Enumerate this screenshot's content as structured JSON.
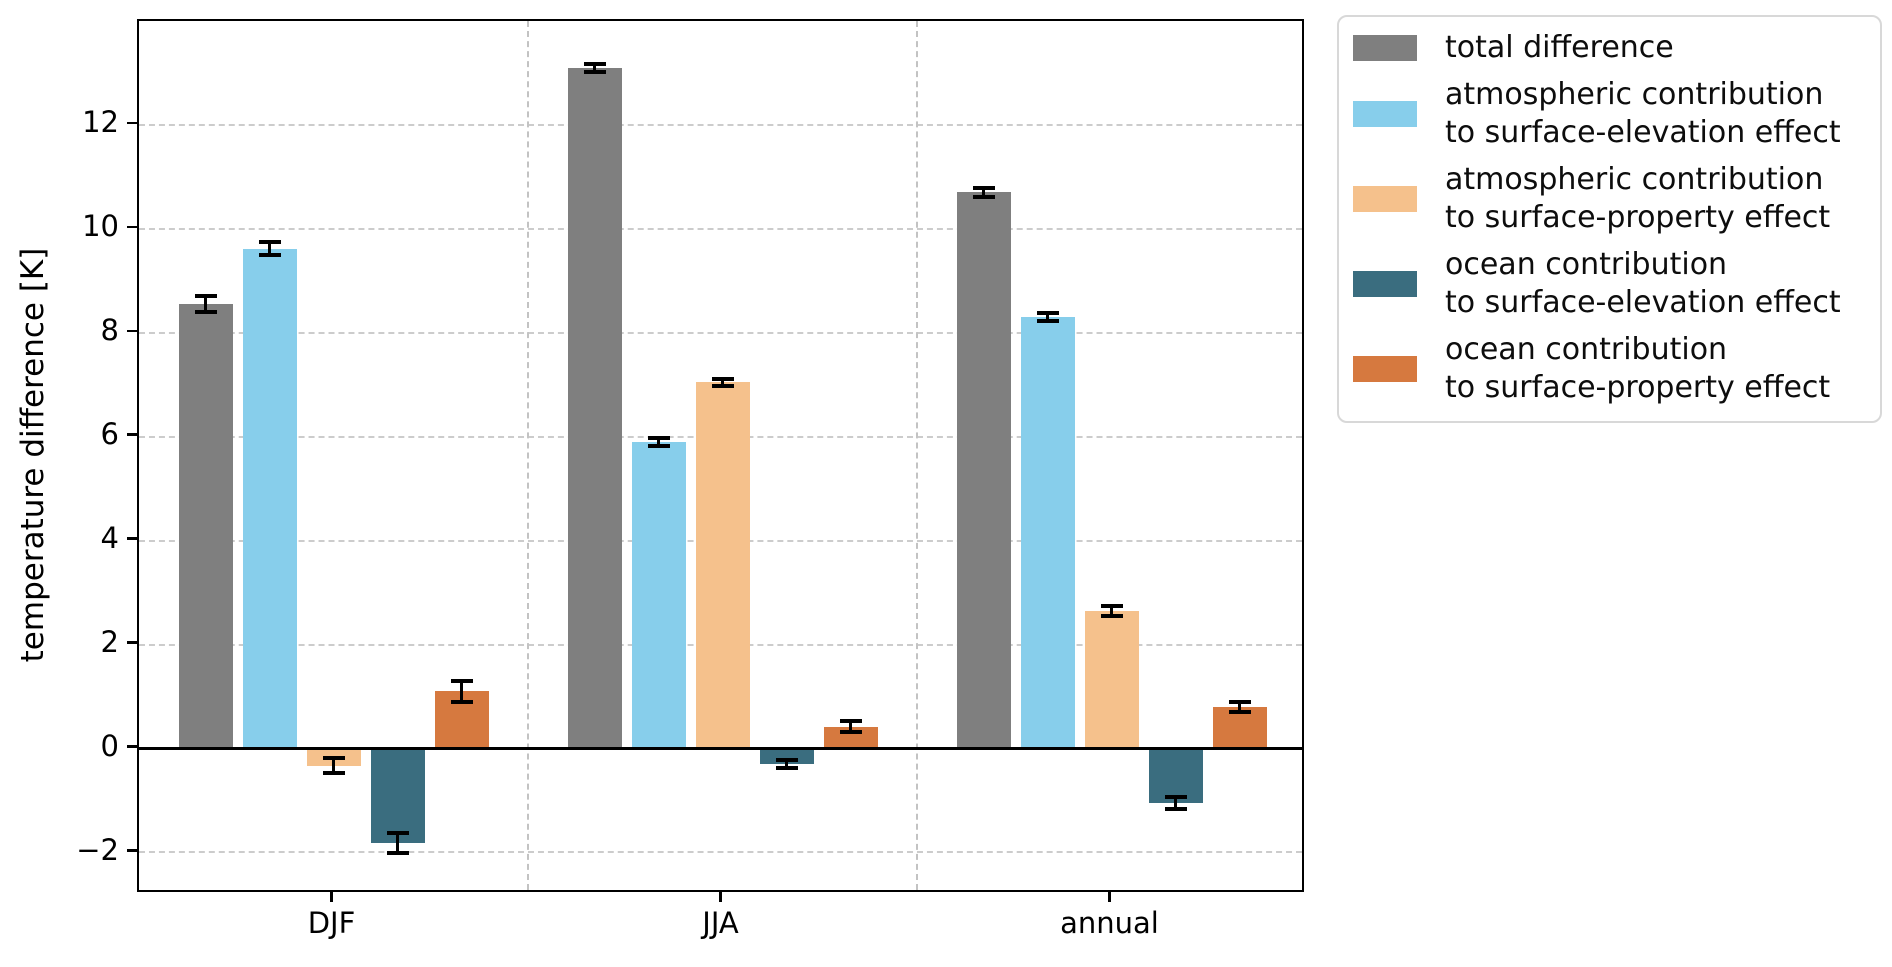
{
  "figure": {
    "background": "#ffffff"
  },
  "chart_data": {
    "type": "bar",
    "title": "",
    "xlabel": "",
    "ylabel": "temperature difference [K]",
    "categories": [
      "DJF",
      "JJA",
      "annual"
    ],
    "series": [
      {
        "name": "total difference",
        "color": "#7f7f7f",
        "values": [
          8.55,
          13.1,
          10.7
        ],
        "errors": [
          0.15,
          0.08,
          0.08
        ]
      },
      {
        "name": "atmospheric contribution\nto surface-elevation effect",
        "color": "#87ceeb",
        "values": [
          9.62,
          5.9,
          8.3
        ],
        "errors": [
          0.13,
          0.07,
          0.08
        ]
      },
      {
        "name": "atmospheric contribution\nto surface-property effect",
        "color": "#f5c18c",
        "values": [
          -0.33,
          7.05,
          2.65
        ],
        "errors": [
          0.15,
          0.07,
          0.1
        ]
      },
      {
        "name": "ocean contribution\nto surface-elevation effect",
        "color": "#3a6d7f",
        "values": [
          -1.82,
          -0.3,
          -1.05
        ],
        "errors": [
          0.19,
          0.08,
          0.11
        ]
      },
      {
        "name": "ocean contribution\nto surface-property effect",
        "color": "#d6793f",
        "values": [
          1.1,
          0.42,
          0.8
        ],
        "errors": [
          0.2,
          0.1,
          0.1
        ]
      }
    ],
    "ylim": [
      -2.8,
      14.0
    ],
    "yticks": [
      -2,
      0,
      2,
      4,
      6,
      8,
      10,
      12
    ],
    "grid": {
      "horizontal": "dashed at yticks",
      "vertical": "dashed separators between category groups"
    },
    "zero_line": true,
    "legend_position": "outside upper right"
  }
}
